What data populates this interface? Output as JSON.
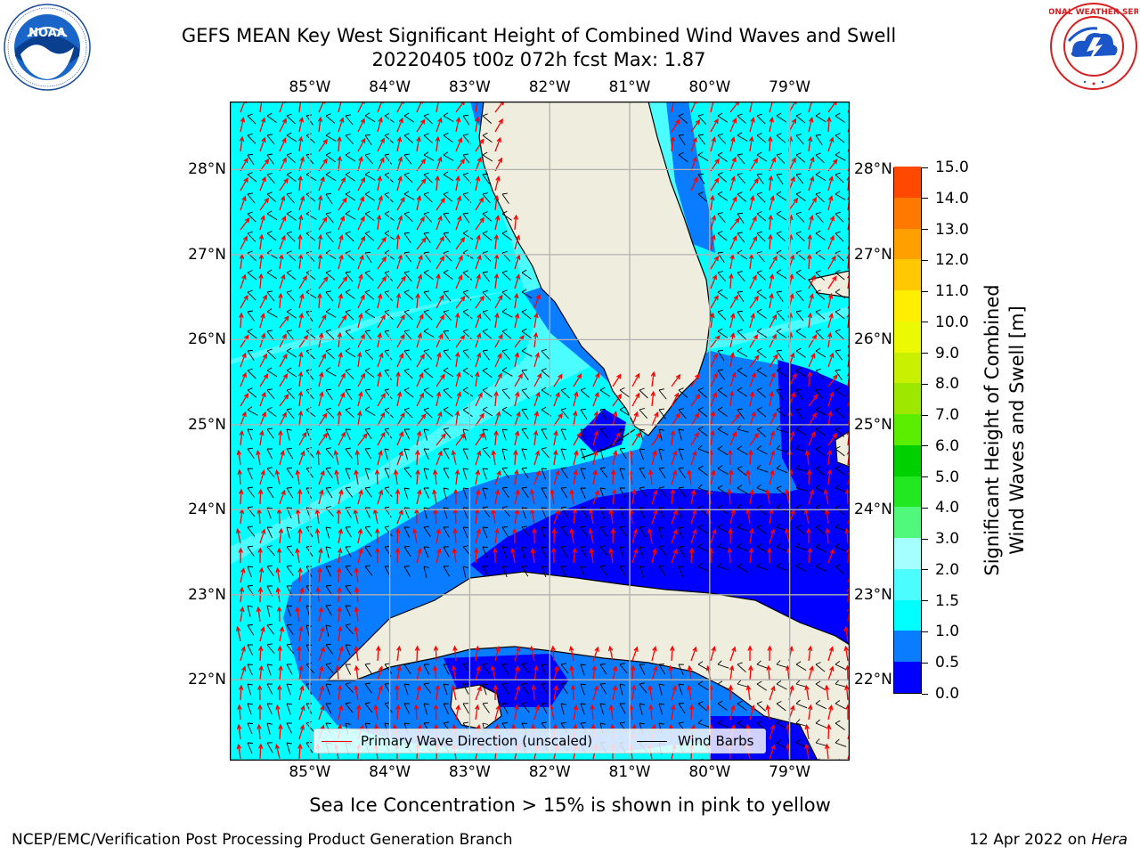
{
  "header": {
    "title_line1": "GEFS MEAN Key West Significant Height of Combined Wind Waves and Swell",
    "title_line2": "20220405 t00z 072h fcst   Max: 1.87"
  },
  "logos": {
    "noaa": {
      "text": "NOAA",
      "ring_text": "NATIONAL OCEANIC AND ATMOSPHERIC ADMINISTRATION · U.S. DEPARTMENT OF COMMERCE"
    },
    "nws": {
      "ring_text": "NATIONAL WEATHER SERVICE"
    }
  },
  "map": {
    "lon_labels": [
      "85°W",
      "84°W",
      "83°W",
      "82°W",
      "81°W",
      "80°W",
      "79°W"
    ],
    "lat_labels": [
      "28°N",
      "27°N",
      "26°N",
      "25°N",
      "24°N",
      "23°N",
      "22°N"
    ],
    "extent": {
      "lon_min": -86.0,
      "lon_max": -78.25,
      "lat_min": 21.05,
      "lat_max": 28.8
    },
    "colors": {
      "land": "#efedde",
      "coast": "#000000",
      "grid": "#b0b0b0",
      "wave_arrow": "#ff0000",
      "wind_barb": "#000000"
    },
    "height_bands": [
      {
        "band": "0.0-0.5",
        "color": "#0000ff"
      },
      {
        "band": "0.5-1.0",
        "color": "#0a7cff"
      },
      {
        "band": "1.0-1.5",
        "color": "#00ffff"
      },
      {
        "band": "1.5-2.0",
        "color": "#4cfdff"
      }
    ]
  },
  "colorbar": {
    "title": "Significant Height of Combined Wind Waves and Swell [m]",
    "title_line1": "Significant Height of Combined",
    "title_line2": "Wind Waves and Swell [m]",
    "ticks": [
      "0.0",
      "0.5",
      "1.0",
      "1.5",
      "2.0",
      "3.0",
      "4.0",
      "5.0",
      "6.0",
      "7.0",
      "8.0",
      "9.0",
      "10.0",
      "11.0",
      "12.0",
      "13.0",
      "14.0",
      "15.0"
    ],
    "colors": [
      "#0000ff",
      "#0a7cff",
      "#00ffff",
      "#4cfdff",
      "#a6ffff",
      "#50f87c",
      "#22e822",
      "#00d000",
      "#5cee00",
      "#9ee800",
      "#c8f000",
      "#ebfa00",
      "#ffee00",
      "#ffc800",
      "#ffa000",
      "#ff7800",
      "#ff4800",
      "#ff0000"
    ]
  },
  "legend": {
    "wave_label": "Primary Wave Direction (unscaled)",
    "wind_label": "Wind Barbs"
  },
  "notes": {
    "sea_ice": "Sea Ice Concentration > 15% is shown in pink to yellow"
  },
  "footer": {
    "left": "NCEP/EMC/Verification Post Processing Product Generation Branch",
    "date": "12 Apr 2022 on ",
    "host": "Hera"
  }
}
